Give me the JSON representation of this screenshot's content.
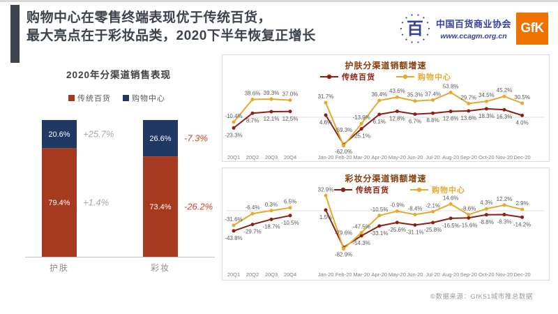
{
  "slide": {
    "title_line1": "购物中心在零售终端表现优于传统百货，",
    "title_line2": "最大亮点在于彩妆品类，2020下半年恢复正增长",
    "footer": "©数据来源：GfK51城市推总数据"
  },
  "logos": {
    "association_name": "中国百货商业协会",
    "association_url": "www.ccagm.org.cn",
    "association_emblem_glyph": "百",
    "gfk_label": "GfK"
  },
  "colors": {
    "title_charcoal": "#3c434d",
    "association_blue": "#3642a0",
    "gfk_orange": "#ee7202",
    "dept_store_bar_red": "#a63a1f",
    "dept_store_line_red": "#8e2012",
    "mall_navy": "#203864",
    "mall_gold": "#e3aa2f",
    "negative_annotation_red": "#e23b2d",
    "positive_annotation_gray": "#a6a6a6"
  },
  "chart_data": [
    {
      "type": "bar",
      "stacked": true,
      "title": "2020年分渠道销售表现",
      "categories": [
        "护肤",
        "彩妆"
      ],
      "legend": [
        {
          "label": "传统百货",
          "color": "#a63a1f"
        },
        {
          "label": "购物中心",
          "color": "#203864"
        }
      ],
      "series": [
        {
          "name": "购物中心",
          "color": "#203864",
          "values": [
            20.6,
            26.6
          ]
        },
        {
          "name": "传统百货",
          "color": "#a63a1f",
          "values": [
            79.4,
            73.4
          ]
        }
      ],
      "unit": "%",
      "annotations": [
        {
          "category_index": 0,
          "series_index": 0,
          "text": "+25.7%",
          "color": "#a6a6a6"
        },
        {
          "category_index": 0,
          "series_index": 1,
          "text": "+1.4%",
          "color": "#a6a6a6"
        },
        {
          "category_index": 1,
          "series_index": 0,
          "text": "-7.3%",
          "color": "#e23b2d"
        },
        {
          "category_index": 1,
          "series_index": 1,
          "text": "-26.2%",
          "color": "#e23b2d"
        }
      ]
    },
    {
      "type": "line",
      "title": "护肤分渠道销额增速",
      "x": [
        "20Q1",
        "20Q2",
        "20Q3",
        "20Q4",
        "Jan-20",
        "Feb-20",
        "Mar-20",
        "Apr-20",
        "May-20",
        "Jun-20",
        "Jul-20",
        "Aug-20",
        "Sep-20",
        "Oct-20",
        "Nov-20",
        "Dec-20"
      ],
      "series": [
        {
          "name": "传统百货",
          "color": "#8e2012",
          "values": [
            -23.3,
            8.7,
            12.1,
            12.5,
            4.6,
            -59.3,
            -25.1,
            6.1,
            12.8,
            6.7,
            8.8,
            12.6,
            13.6,
            18.3,
            16.3,
            4.0
          ]
        },
        {
          "name": "购物中心",
          "color": "#e3aa2f",
          "values": [
            -10.4,
            38.6,
            39.3,
            37.0,
            31.7,
            -62.0,
            -13.9,
            36.4,
            43.6,
            35.3,
            37.4,
            53.8,
            29.7,
            34.5,
            45.2,
            30.5
          ]
        }
      ],
      "unit": "%",
      "ylim": [
        -75,
        60
      ],
      "zero_line": true,
      "legend_position": "top"
    },
    {
      "type": "line",
      "title": "彩妆分渠道销额增速",
      "x": [
        "20Q1",
        "20Q2",
        "20Q3",
        "20Q4",
        "Jan-20",
        "Feb-20",
        "Mar-20",
        "Apr-20",
        "May-20",
        "Jun-20",
        "Jul-20",
        "Aug-20",
        "Sep-20",
        "Oct-20",
        "Nov-20",
        "Dec-20"
      ],
      "series": [
        {
          "name": "传统百货",
          "color": "#8e2012",
          "values": [
            -43.8,
            -29.7,
            -18.7,
            -10.5,
            1.5,
            -79.6,
            -54.3,
            -33.1,
            -25.6,
            -31.1,
            -25.8,
            -16.5,
            -15.6,
            -8.8,
            -8.3,
            -14.2
          ]
        },
        {
          "name": "购物中心",
          "color": "#e3aa2f",
          "values": [
            -31.6,
            -6.4,
            0.3,
            6.5,
            32.9,
            -82.9,
            -47.5,
            -10.5,
            -0.9,
            -8.4,
            -2.1,
            14.6,
            -8.6,
            4.3,
            12.2,
            2.9
          ]
        }
      ],
      "unit": "%",
      "ylim": [
        -95,
        45
      ],
      "zero_line": true,
      "legend_position": "top"
    }
  ]
}
